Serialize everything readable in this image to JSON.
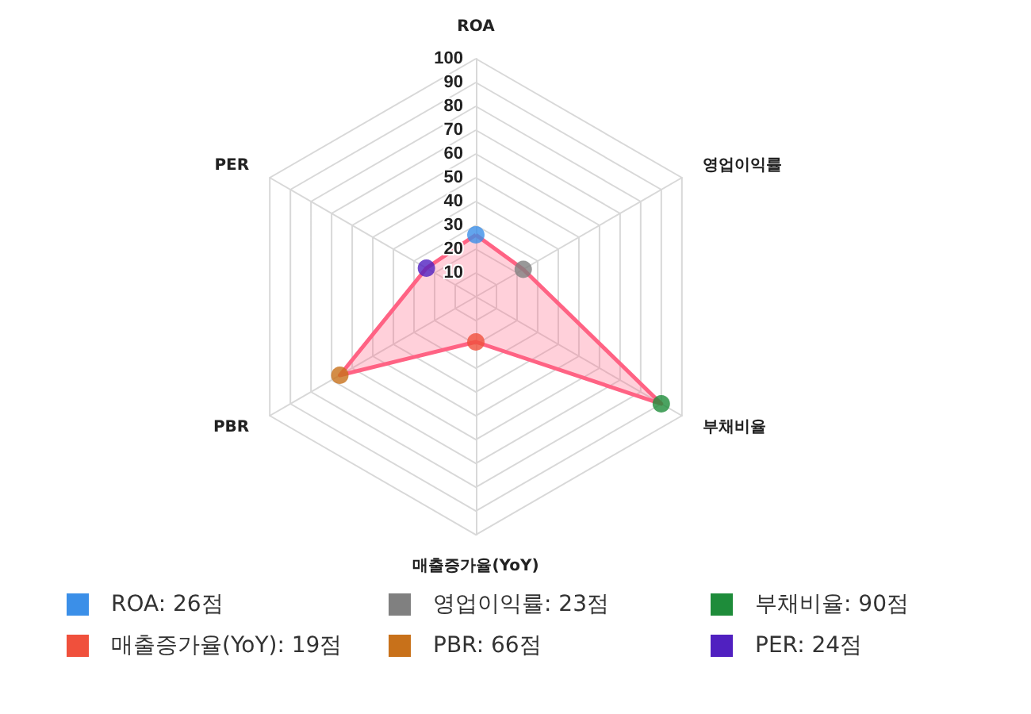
{
  "chart_data": {
    "type": "radar",
    "categories": [
      "ROA",
      "영업이익률",
      "부채비율",
      "매출증가율(YoY)",
      "PBR",
      "PER"
    ],
    "series": [
      {
        "color": "#ff6384",
        "colors": [
          "#3b8fe8",
          "#808080",
          "#1e8c3a",
          "#f0503c",
          "#c8711a",
          "#5020c0"
        ],
        "values": [
          26,
          23,
          90,
          19,
          66,
          24
        ]
      }
    ],
    "annotations": [
      "ROA: 26점",
      "영업이익률: 23점",
      "부채비율: 90점",
      "매출증가율(YoY): 19점",
      "PBR: 66점",
      "PER: 24점"
    ],
    "ylim": [
      0,
      100
    ],
    "yticks": [
      10,
      20,
      30,
      40,
      50,
      60,
      70,
      80,
      90,
      100
    ],
    "grid": true,
    "marker": "circle"
  }
}
